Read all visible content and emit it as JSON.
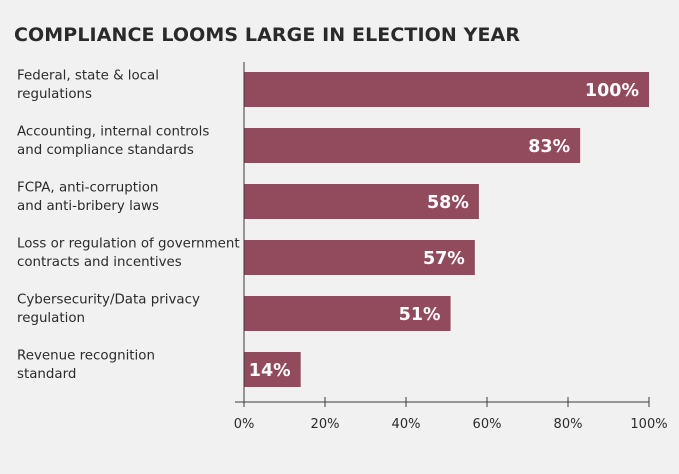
{
  "chart_data": {
    "type": "bar",
    "orientation": "horizontal",
    "title": "COMPLIANCE LOOMS LARGE IN ELECTION YEAR",
    "categories": [
      [
        "Federal, state & local",
        "regulations"
      ],
      [
        "Accounting, internal controls",
        "and compliance standards"
      ],
      [
        "FCPA, anti-corruption",
        "and anti-bribery laws"
      ],
      [
        "Loss or regulation of government",
        "contracts and incentives"
      ],
      [
        "Cybersecurity/Data privacy",
        "regulation"
      ],
      [
        "Revenue recognition",
        "standard"
      ]
    ],
    "values": [
      100,
      83,
      58,
      57,
      51,
      14
    ],
    "value_labels": [
      "100%",
      "83%",
      "58%",
      "57%",
      "51%",
      "14%"
    ],
    "xlim": [
      0,
      100
    ],
    "xticks": [
      0,
      20,
      40,
      60,
      80,
      100
    ],
    "xtick_labels": [
      "0%",
      "20%",
      "40%",
      "60%",
      "80%",
      "100%"
    ],
    "xlabel": "",
    "ylabel": "",
    "grid": false,
    "bar_color": "#924a5d",
    "axis_color": "#3a3a3a"
  }
}
